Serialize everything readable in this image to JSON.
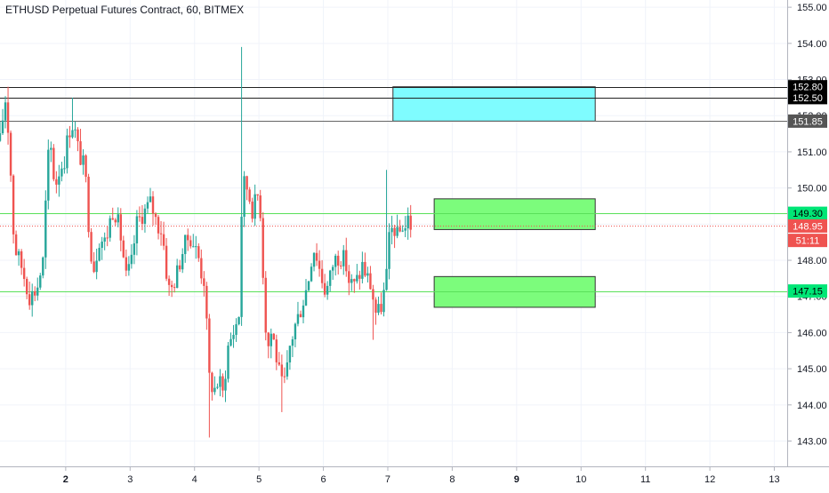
{
  "chart_data": {
    "type": "candlestick",
    "title": "ETHUSD Perpetual Futures Contract, 60, BITMEX",
    "ylim": [
      142.3,
      155.2
    ],
    "xlim": [
      0.98,
      13.2
    ],
    "y_ticks": [
      "143.00",
      "144.00",
      "145.00",
      "146.00",
      "147.00",
      "148.00",
      "149.00",
      "150.00",
      "151.00",
      "152.00",
      "153.00",
      "154.00",
      "155.00"
    ],
    "x_ticks": [
      {
        "value": 2,
        "label": "2"
      },
      {
        "value": 3,
        "label": "3"
      },
      {
        "value": 4,
        "label": "4"
      },
      {
        "value": 5,
        "label": "5"
      },
      {
        "value": 6,
        "label": "6"
      },
      {
        "value": 7,
        "label": "7"
      },
      {
        "value": 8,
        "label": "8"
      },
      {
        "value": 9,
        "label": "9"
      },
      {
        "value": 10,
        "label": "10"
      },
      {
        "value": 11,
        "label": "11"
      },
      {
        "value": 12,
        "label": "12"
      },
      {
        "value": 13,
        "label": "13"
      }
    ],
    "bold_x_ticks": [
      "2",
      "9"
    ],
    "grid": true,
    "colors": {
      "up": "#26a69a",
      "down": "#ef5350",
      "grid": "#f0f3fa",
      "axis_text": "#131722",
      "green_zone": "#7cfc7c",
      "cyan_zone": "#7ffcff",
      "green_line": "#5ae05a",
      "gray_line": "#666666",
      "black_line": "#222222"
    },
    "horizontal_lines": [
      {
        "y": 152.8,
        "color": "#222222"
      },
      {
        "y": 152.5,
        "color": "#222222"
      },
      {
        "y": 151.85,
        "color": "#666666"
      },
      {
        "y": 149.3,
        "color": "#5ae05a"
      },
      {
        "y": 147.15,
        "color": "#5ae05a"
      }
    ],
    "current_price_line": {
      "y": 148.95,
      "color": "#ef5350"
    },
    "zones": [
      {
        "x_start": 7.08,
        "x_end": 10.22,
        "y_top": 152.8,
        "y_bottom": 151.85,
        "color": "#7ffcff"
      },
      {
        "x_start": 7.72,
        "x_end": 10.22,
        "y_top": 149.7,
        "y_bottom": 148.85,
        "color": "#7cfc7c"
      },
      {
        "x_start": 7.72,
        "x_end": 10.22,
        "y_top": 147.55,
        "y_bottom": 146.7,
        "color": "#7cfc7c"
      }
    ],
    "price_labels": [
      {
        "y": 152.8,
        "text": "152.80",
        "bg": "#000000",
        "fg": "#ffffff"
      },
      {
        "y": 152.5,
        "text": "152.50",
        "bg": "#000000",
        "fg": "#ffffff"
      },
      {
        "y": 151.85,
        "text": "151.85",
        "bg": "#555555",
        "fg": "#ffffff"
      },
      {
        "y": 149.3,
        "text": "149.30",
        "bg": "#00e676",
        "fg": "#000000"
      },
      {
        "y": 148.95,
        "text": "148.95",
        "bg": "#ef5350",
        "fg": "#ffffff"
      },
      {
        "y": 148.55,
        "text": "51:11",
        "bg": "#ef5350",
        "fg": "#ffffff"
      },
      {
        "y": 147.15,
        "text": "147.15",
        "bg": "#00e676",
        "fg": "#000000"
      }
    ],
    "waypoints": [
      [
        0.98,
        151.3
      ],
      [
        1.06,
        152.5
      ],
      [
        1.12,
        151.4
      ],
      [
        1.2,
        148.4
      ],
      [
        1.32,
        147.8
      ],
      [
        1.44,
        147.0
      ],
      [
        1.55,
        147.2
      ],
      [
        1.65,
        148.0
      ],
      [
        1.72,
        150.8
      ],
      [
        1.78,
        151.1
      ],
      [
        1.83,
        150.0
      ],
      [
        1.9,
        150.5
      ],
      [
        1.98,
        150.8
      ],
      [
        2.05,
        151.6
      ],
      [
        2.12,
        151.8
      ],
      [
        2.2,
        151.0
      ],
      [
        2.3,
        150.5
      ],
      [
        2.38,
        148.4
      ],
      [
        2.44,
        147.8
      ],
      [
        2.52,
        148.6
      ],
      [
        2.62,
        148.5
      ],
      [
        2.72,
        149.4
      ],
      [
        2.78,
        149.3
      ],
      [
        2.86,
        148.6
      ],
      [
        2.94,
        147.5
      ],
      [
        3.02,
        147.9
      ],
      [
        3.1,
        149.0
      ],
      [
        3.16,
        149.2
      ],
      [
        3.24,
        149.4
      ],
      [
        3.32,
        149.6
      ],
      [
        3.42,
        149.0
      ],
      [
        3.5,
        148.8
      ],
      [
        3.58,
        147.4
      ],
      [
        3.62,
        147.1
      ],
      [
        3.72,
        147.6
      ],
      [
        3.82,
        148.3
      ],
      [
        3.92,
        148.7
      ],
      [
        4.0,
        148.4
      ],
      [
        4.06,
        148.1
      ],
      [
        4.1,
        147.7
      ],
      [
        4.16,
        147.4
      ],
      [
        4.22,
        144.8
      ],
      [
        4.3,
        144.4
      ],
      [
        4.38,
        144.7
      ],
      [
        4.44,
        144.3
      ],
      [
        4.52,
        145.6
      ],
      [
        4.6,
        146.0
      ],
      [
        4.64,
        146.2
      ],
      [
        4.7,
        146.6
      ],
      [
        4.74,
        150.2
      ],
      [
        4.82,
        150.0
      ],
      [
        4.9,
        149.4
      ],
      [
        4.98,
        149.8
      ],
      [
        5.04,
        149.2
      ],
      [
        5.08,
        146.6
      ],
      [
        5.14,
        145.6
      ],
      [
        5.2,
        146.1
      ],
      [
        5.3,
        145.0
      ],
      [
        5.36,
        144.5
      ],
      [
        5.42,
        144.7
      ],
      [
        5.48,
        145.6
      ],
      [
        5.56,
        146.2
      ],
      [
        5.62,
        146.5
      ],
      [
        5.72,
        147.1
      ],
      [
        5.78,
        147.6
      ],
      [
        5.84,
        148.4
      ],
      [
        5.9,
        148.1
      ],
      [
        5.96,
        147.6
      ],
      [
        6.04,
        147.1
      ],
      [
        6.1,
        147.5
      ],
      [
        6.16,
        148.0
      ],
      [
        6.22,
        148.1
      ],
      [
        6.3,
        148.1
      ],
      [
        6.36,
        147.8
      ],
      [
        6.4,
        147.4
      ],
      [
        6.48,
        147.3
      ],
      [
        6.56,
        147.6
      ],
      [
        6.6,
        147.9
      ],
      [
        6.66,
        147.6
      ],
      [
        6.72,
        147.4
      ],
      [
        6.78,
        146.9
      ],
      [
        6.82,
        146.5
      ],
      [
        6.88,
        146.6
      ],
      [
        6.94,
        147.1
      ],
      [
        6.98,
        147.6
      ],
      [
        7.0,
        148.2
      ],
      [
        7.04,
        148.8
      ],
      [
        7.1,
        148.9
      ],
      [
        7.16,
        148.6
      ],
      [
        7.22,
        149.0
      ],
      [
        7.28,
        148.9
      ],
      [
        7.32,
        149.2
      ],
      [
        7.36,
        148.95
      ]
    ],
    "spikes": [
      {
        "x": 1.12,
        "high": 152.8
      },
      {
        "x": 2.1,
        "high": 152.5
      },
      {
        "x": 4.22,
        "low": 143.1
      },
      {
        "x": 4.74,
        "high": 153.9
      },
      {
        "x": 5.36,
        "low": 143.8
      },
      {
        "x": 6.78,
        "low": 145.8
      },
      {
        "x": 6.96,
        "high": 150.5
      }
    ]
  }
}
